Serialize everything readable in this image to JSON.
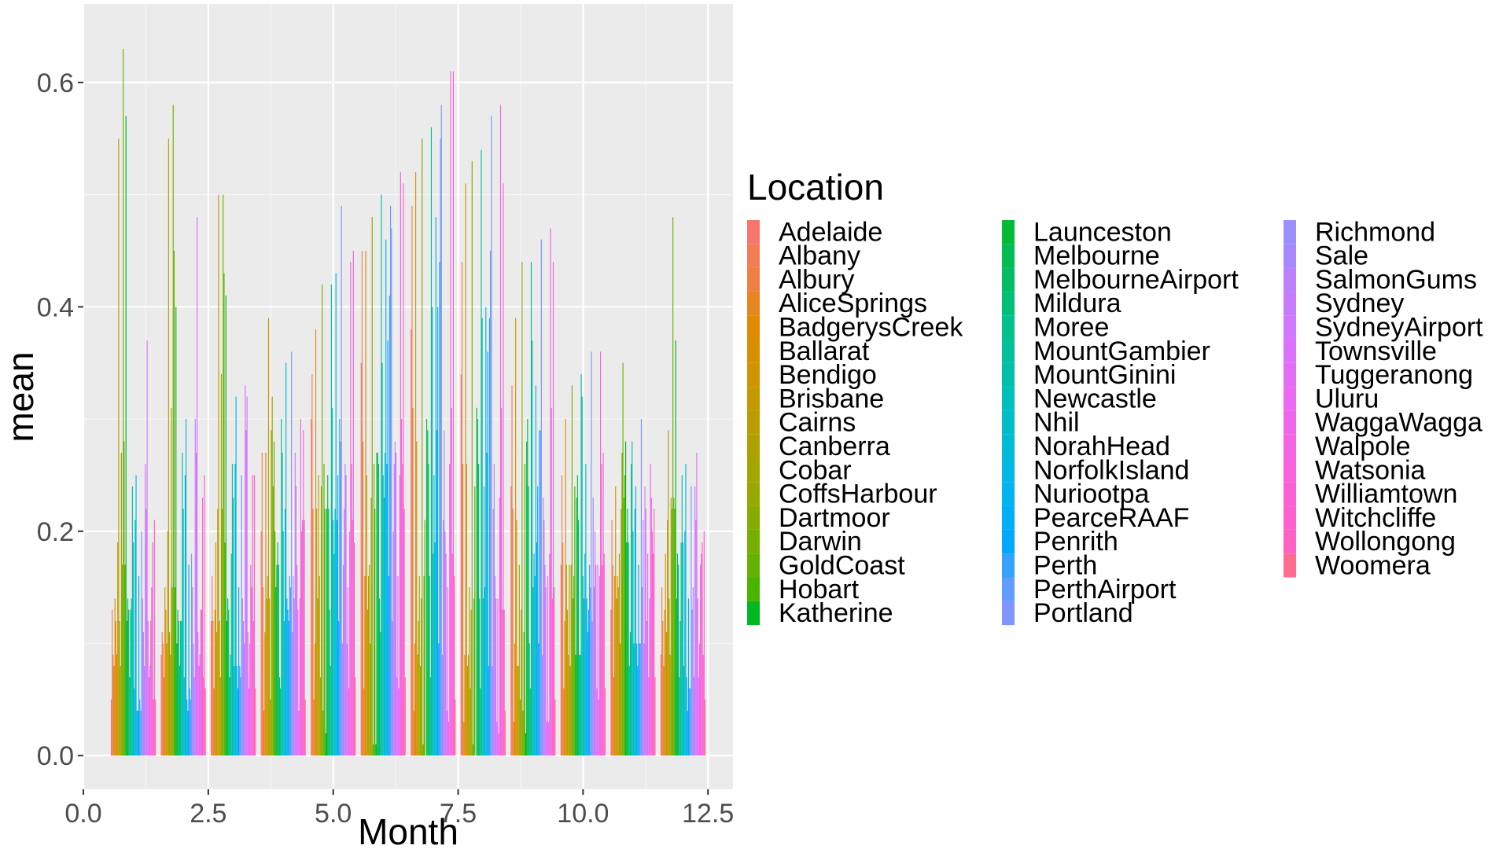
{
  "chart_data": {
    "type": "bar",
    "title": "",
    "xlabel": "Month",
    "ylabel": "mean",
    "xlim": [
      0,
      13
    ],
    "ylim": [
      -0.03,
      0.67
    ],
    "x_ticks": [
      "0.0",
      "2.5",
      "5.0",
      "7.5",
      "10.0",
      "12.5"
    ],
    "y_ticks": [
      "0.0",
      "0.2",
      "0.4",
      "0.6"
    ],
    "grid": true,
    "legend_title": "Location",
    "legend_position": "right",
    "x": [
      1,
      2,
      3,
      4,
      5,
      6,
      7,
      8,
      9,
      10,
      11,
      12
    ],
    "series": [
      {
        "name": "Adelaide",
        "color": "#F8766D",
        "values": [
          0.05,
          0.09,
          0.12,
          0.2,
          0.3,
          0.35,
          0.38,
          0.34,
          0.24,
          0.17,
          0.13,
          0.09
        ]
      },
      {
        "name": "Albany",
        "color": "#F47D55",
        "values": [
          0.13,
          0.11,
          0.16,
          0.27,
          0.34,
          0.45,
          0.49,
          0.44,
          0.33,
          0.25,
          0.21,
          0.15
        ]
      },
      {
        "name": "Albury",
        "color": "#EE8044",
        "values": [
          0.09,
          0.1,
          0.12,
          0.15,
          0.22,
          0.28,
          0.31,
          0.26,
          0.22,
          0.19,
          0.17,
          0.12
        ]
      },
      {
        "name": "AliceSprings",
        "color": "#E7851E",
        "values": [
          0.08,
          0.07,
          0.06,
          0.04,
          0.05,
          0.06,
          0.04,
          0.03,
          0.03,
          0.06,
          0.07,
          0.08
        ]
      },
      {
        "name": "BadgerysCreek",
        "color": "#E08B00",
        "values": [
          0.14,
          0.15,
          0.13,
          0.11,
          0.1,
          0.16,
          0.1,
          0.09,
          0.1,
          0.12,
          0.16,
          0.13
        ]
      },
      {
        "name": "Ballarat",
        "color": "#D89000",
        "values": [
          0.12,
          0.13,
          0.19,
          0.27,
          0.38,
          0.45,
          0.52,
          0.51,
          0.39,
          0.3,
          0.24,
          0.18
        ]
      },
      {
        "name": "Bendigo",
        "color": "#CF9400",
        "values": [
          0.09,
          0.1,
          0.11,
          0.14,
          0.22,
          0.25,
          0.28,
          0.26,
          0.21,
          0.17,
          0.14,
          0.11
        ]
      },
      {
        "name": "Brisbane",
        "color": "#C49A00",
        "values": [
          0.19,
          0.2,
          0.22,
          0.16,
          0.14,
          0.13,
          0.09,
          0.08,
          0.08,
          0.13,
          0.16,
          0.21
        ]
      },
      {
        "name": "Cairns",
        "color": "#B99E00",
        "values": [
          0.55,
          0.55,
          0.5,
          0.39,
          0.25,
          0.16,
          0.12,
          0.09,
          0.08,
          0.09,
          0.15,
          0.29
        ]
      },
      {
        "name": "Canberra",
        "color": "#ADA200",
        "values": [
          0.12,
          0.11,
          0.12,
          0.14,
          0.16,
          0.17,
          0.16,
          0.15,
          0.17,
          0.17,
          0.18,
          0.14
        ]
      },
      {
        "name": "Cobar",
        "color": "#A3A500",
        "values": [
          0.08,
          0.09,
          0.07,
          0.05,
          0.07,
          0.1,
          0.08,
          0.06,
          0.05,
          0.08,
          0.1,
          0.09
        ]
      },
      {
        "name": "CoffsHarbour",
        "color": "#95A900",
        "values": [
          0.27,
          0.31,
          0.34,
          0.29,
          0.24,
          0.23,
          0.14,
          0.13,
          0.13,
          0.17,
          0.22,
          0.23
        ]
      },
      {
        "name": "Dartmoor",
        "color": "#86AC00",
        "values": [
          0.17,
          0.15,
          0.22,
          0.32,
          0.42,
          0.48,
          0.55,
          0.53,
          0.44,
          0.33,
          0.27,
          0.22
        ]
      },
      {
        "name": "Darwin",
        "color": "#75AF00",
        "values": [
          0.63,
          0.58,
          0.5,
          0.24,
          0.04,
          0.01,
          0.01,
          0.01,
          0.04,
          0.14,
          0.35,
          0.48
        ]
      },
      {
        "name": "GoldCoast",
        "color": "#64B200",
        "values": [
          0.28,
          0.45,
          0.43,
          0.28,
          0.26,
          0.26,
          0.16,
          0.14,
          0.11,
          0.16,
          0.23,
          0.23
        ]
      },
      {
        "name": "Hobart",
        "color": "#49B500",
        "values": [
          0.17,
          0.15,
          0.19,
          0.2,
          0.22,
          0.22,
          0.21,
          0.24,
          0.26,
          0.24,
          0.25,
          0.22
        ]
      },
      {
        "name": "Katherine",
        "color": "#00B81F",
        "values": [
          0.57,
          0.4,
          0.41,
          0.15,
          0.02,
          0.01,
          0.0,
          0.0,
          0.02,
          0.09,
          0.28,
          0.37
        ]
      },
      {
        "name": "Launceston",
        "color": "#00BA38",
        "values": [
          0.12,
          0.1,
          0.12,
          0.17,
          0.22,
          0.27,
          0.3,
          0.31,
          0.28,
          0.23,
          0.19,
          0.14
        ]
      },
      {
        "name": "Melbourne",
        "color": "#00BC52",
        "values": [
          0.14,
          0.13,
          0.14,
          0.19,
          0.25,
          0.27,
          0.29,
          0.3,
          0.3,
          0.25,
          0.22,
          0.18
        ]
      },
      {
        "name": "MelbourneAirport",
        "color": "#00BD66",
        "values": [
          0.13,
          0.12,
          0.13,
          0.17,
          0.22,
          0.26,
          0.26,
          0.26,
          0.24,
          0.21,
          0.19,
          0.17
        ]
      },
      {
        "name": "Mildura",
        "color": "#00BF79",
        "values": [
          0.07,
          0.08,
          0.07,
          0.07,
          0.13,
          0.14,
          0.16,
          0.14,
          0.1,
          0.09,
          0.08,
          0.07
        ]
      },
      {
        "name": "Moree",
        "color": "#00C08B",
        "values": [
          0.13,
          0.12,
          0.09,
          0.06,
          0.08,
          0.11,
          0.07,
          0.06,
          0.06,
          0.09,
          0.11,
          0.12
        ]
      },
      {
        "name": "MountGambier",
        "color": "#00C19C",
        "values": [
          0.14,
          0.12,
          0.18,
          0.3,
          0.42,
          0.5,
          0.56,
          0.54,
          0.44,
          0.34,
          0.26,
          0.19
        ]
      },
      {
        "name": "MountGinini",
        "color": "#00C0AC",
        "values": [
          0.24,
          0.27,
          0.26,
          0.27,
          0.31,
          0.35,
          0.4,
          0.39,
          0.37,
          0.32,
          0.28,
          0.25
        ]
      },
      {
        "name": "Newcastle",
        "color": "#00BFBC",
        "values": [
          0.19,
          0.22,
          0.23,
          0.2,
          0.21,
          0.25,
          0.18,
          0.14,
          0.15,
          0.16,
          0.2,
          0.19
        ]
      },
      {
        "name": "Nhil",
        "color": "#00BDCA",
        "values": [
          0.06,
          0.07,
          0.08,
          0.12,
          0.18,
          0.23,
          0.25,
          0.24,
          0.18,
          0.14,
          0.1,
          0.08
        ]
      },
      {
        "name": "NorahHead",
        "color": "#00BBD8",
        "values": [
          0.21,
          0.25,
          0.26,
          0.22,
          0.22,
          0.27,
          0.19,
          0.15,
          0.16,
          0.18,
          0.22,
          0.2
        ]
      },
      {
        "name": "NorfolkIsland",
        "color": "#00B8E4",
        "values": [
          0.25,
          0.3,
          0.32,
          0.35,
          0.43,
          0.46,
          0.48,
          0.4,
          0.33,
          0.26,
          0.24,
          0.26
        ]
      },
      {
        "name": "Nuriootpa",
        "color": "#00B4EF",
        "values": [
          0.04,
          0.05,
          0.08,
          0.14,
          0.21,
          0.26,
          0.29,
          0.27,
          0.19,
          0.14,
          0.1,
          0.07
        ]
      },
      {
        "name": "PearceRAAF",
        "color": "#00B0F6",
        "values": [
          0.04,
          0.04,
          0.06,
          0.13,
          0.25,
          0.37,
          0.4,
          0.36,
          0.24,
          0.11,
          0.08,
          0.04
        ]
      },
      {
        "name": "Penrith",
        "color": "#00A9FF",
        "values": [
          0.16,
          0.17,
          0.15,
          0.12,
          0.12,
          0.16,
          0.1,
          0.08,
          0.1,
          0.13,
          0.17,
          0.14
        ]
      },
      {
        "name": "Perth",
        "color": "#35A2FF",
        "values": [
          0.05,
          0.06,
          0.08,
          0.16,
          0.3,
          0.41,
          0.44,
          0.39,
          0.29,
          0.17,
          0.1,
          0.06
        ]
      },
      {
        "name": "PerthAirport",
        "color": "#619CFF",
        "values": [
          0.04,
          0.05,
          0.07,
          0.15,
          0.28,
          0.49,
          0.55,
          0.45,
          0.29,
          0.15,
          0.1,
          0.06
        ]
      },
      {
        "name": "Portland",
        "color": "#7F96FF",
        "values": [
          0.2,
          0.18,
          0.25,
          0.36,
          0.49,
          0.47,
          0.58,
          0.57,
          0.46,
          0.36,
          0.3,
          0.24
        ]
      },
      {
        "name": "Richmond",
        "color": "#998FFF",
        "values": [
          0.14,
          0.15,
          0.14,
          0.11,
          0.1,
          0.12,
          0.09,
          0.08,
          0.09,
          0.12,
          0.15,
          0.13
        ]
      },
      {
        "name": "Sale",
        "color": "#A788FF",
        "values": [
          0.11,
          0.1,
          0.12,
          0.16,
          0.17,
          0.2,
          0.21,
          0.22,
          0.23,
          0.23,
          0.21,
          0.15
        ]
      },
      {
        "name": "SalmonGums",
        "color": "#BB81FF",
        "values": [
          0.08,
          0.07,
          0.1,
          0.14,
          0.22,
          0.26,
          0.29,
          0.26,
          0.21,
          0.15,
          0.1,
          0.07
        ]
      },
      {
        "name": "Sydney",
        "color": "#C77CFF",
        "values": [
          0.26,
          0.3,
          0.33,
          0.27,
          0.26,
          0.28,
          0.2,
          0.16,
          0.17,
          0.2,
          0.24,
          0.24
        ]
      },
      {
        "name": "SydneyAirport",
        "color": "#D277FF",
        "values": [
          0.22,
          0.27,
          0.29,
          0.24,
          0.25,
          0.27,
          0.18,
          0.14,
          0.15,
          0.17,
          0.22,
          0.21
        ]
      },
      {
        "name": "Townsville",
        "color": "#DB72FB",
        "values": [
          0.37,
          0.48,
          0.32,
          0.17,
          0.1,
          0.07,
          0.04,
          0.03,
          0.03,
          0.06,
          0.12,
          0.27
        ]
      },
      {
        "name": "Tuggeranong",
        "color": "#E36EF6",
        "values": [
          0.12,
          0.11,
          0.11,
          0.13,
          0.15,
          0.16,
          0.15,
          0.14,
          0.16,
          0.17,
          0.18,
          0.14
        ]
      },
      {
        "name": "Uluru",
        "color": "#EA6AF1",
        "values": [
          0.07,
          0.08,
          0.06,
          0.04,
          0.06,
          0.06,
          0.03,
          0.02,
          0.03,
          0.05,
          0.07,
          0.07
        ]
      },
      {
        "name": "WaggaWagga",
        "color": "#F066EA",
        "values": [
          0.08,
          0.09,
          0.1,
          0.14,
          0.2,
          0.25,
          0.26,
          0.23,
          0.18,
          0.16,
          0.14,
          0.1
        ]
      },
      {
        "name": "Walpole",
        "color": "#F564E3",
        "values": [
          0.12,
          0.13,
          0.17,
          0.3,
          0.44,
          0.52,
          0.61,
          0.58,
          0.47,
          0.36,
          0.26,
          0.17
        ]
      },
      {
        "name": "Watsonia",
        "color": "#F963DB",
        "values": [
          0.15,
          0.13,
          0.15,
          0.2,
          0.26,
          0.3,
          0.31,
          0.31,
          0.31,
          0.26,
          0.23,
          0.18
        ]
      },
      {
        "name": "Williamtown",
        "color": "#FC61D4",
        "values": [
          0.19,
          0.23,
          0.25,
          0.21,
          0.21,
          0.26,
          0.18,
          0.13,
          0.14,
          0.17,
          0.2,
          0.19
        ]
      },
      {
        "name": "Witchcliffe",
        "color": "#FE61CF",
        "values": [
          0.05,
          0.07,
          0.12,
          0.29,
          0.45,
          0.51,
          0.61,
          0.51,
          0.44,
          0.27,
          0.18,
          0.09
        ]
      },
      {
        "name": "Wollongong",
        "color": "#FF62C2",
        "values": [
          0.21,
          0.25,
          0.25,
          0.21,
          0.19,
          0.22,
          0.16,
          0.13,
          0.15,
          0.18,
          0.22,
          0.2
        ]
      },
      {
        "name": "Woomera",
        "color": "#FF6C91",
        "values": [
          0.05,
          0.06,
          0.06,
          0.05,
          0.07,
          0.07,
          0.05,
          0.04,
          0.05,
          0.06,
          0.07,
          0.05
        ]
      }
    ]
  }
}
